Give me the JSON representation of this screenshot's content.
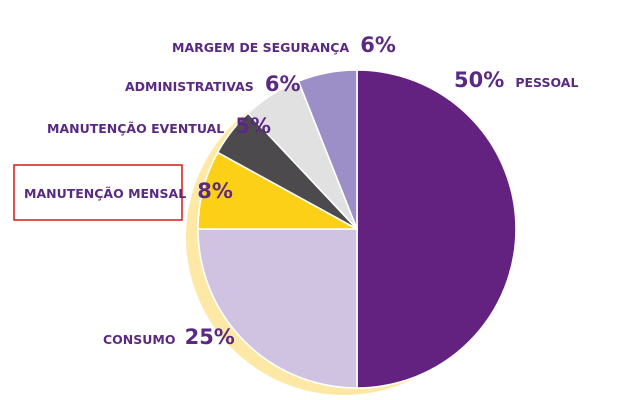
{
  "chart_data": {
    "type": "pie",
    "slices": [
      {
        "label": "PESSOAL",
        "value": 50,
        "pct_text": "50%",
        "color": "#632180"
      },
      {
        "label": "CONSUMO",
        "value": 25,
        "pct_text": "25%",
        "color": "#cfc3e1"
      },
      {
        "label": "MANUTENÇÃO MENSAL",
        "value": 8,
        "pct_text": "8%",
        "color": "#fdd018"
      },
      {
        "label": "MANUTENÇÃO EVENTUAL",
        "value": 5,
        "pct_text": "5%",
        "color": "#4c4a4d"
      },
      {
        "label": "ADMINISTRATIVAS",
        "value": 6,
        "pct_text": "6%",
        "color": "#e2e1e2"
      },
      {
        "label": "MARGEM DE SEGURANÇA",
        "value": 6,
        "pct_text": "6%",
        "color": "#9c8ec6"
      }
    ],
    "highlighted": "MANUTENÇÃO MENSAL",
    "shadow_color": "#fde9a5",
    "highlight_color": "#d62828"
  }
}
